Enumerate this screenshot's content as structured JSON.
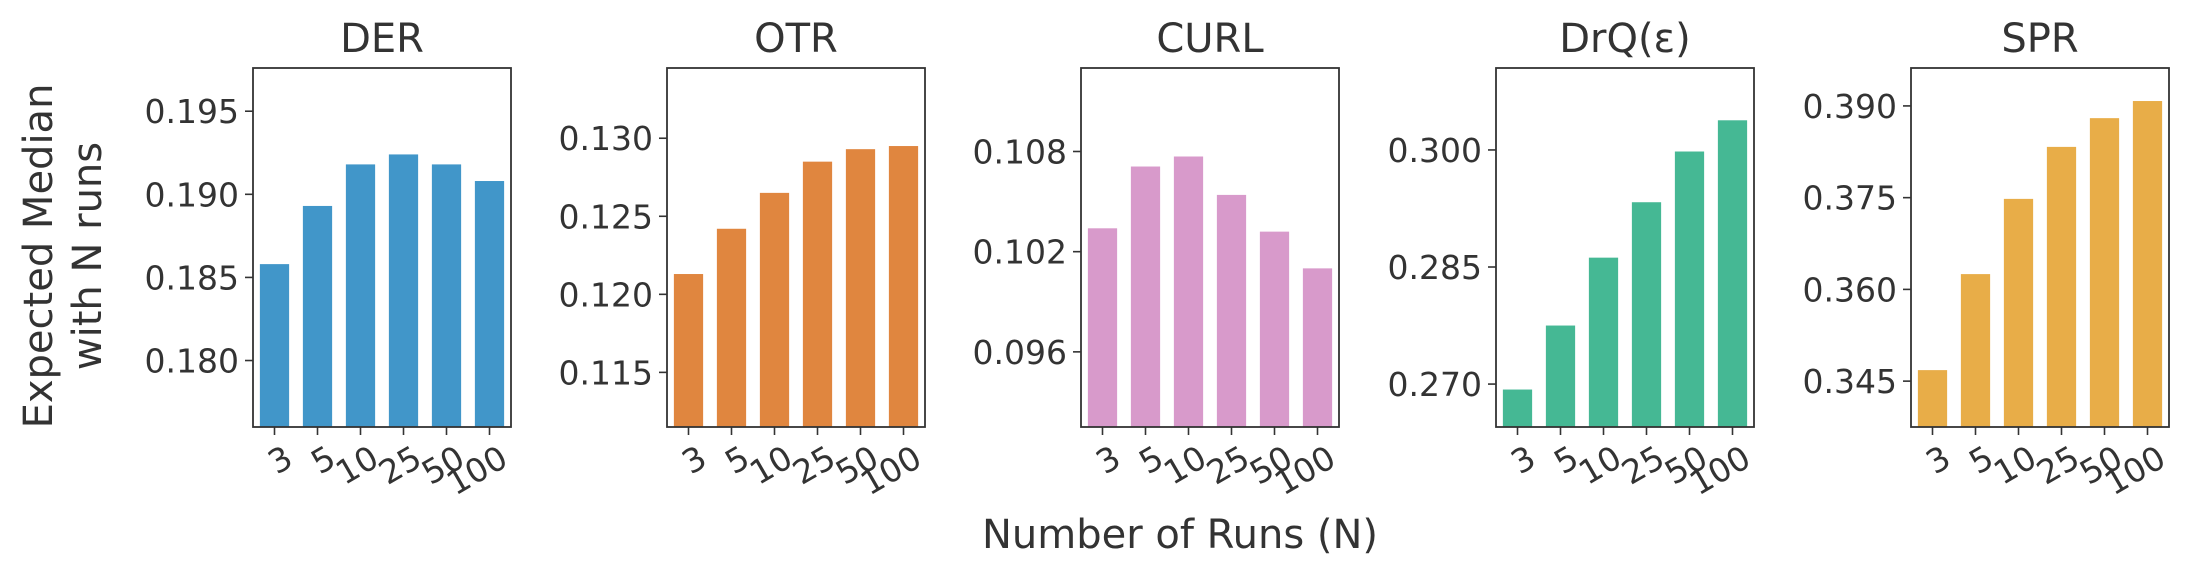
{
  "figure": {
    "ylabel_lines": [
      "Expected Median",
      "with N runs"
    ],
    "xlabel": "Number of Runs (N)"
  },
  "chart_data": [
    {
      "type": "bar",
      "title": "DER",
      "categories": [
        "3",
        "5",
        "10",
        "25",
        "50",
        "100"
      ],
      "values": [
        0.1858,
        0.1893,
        0.1918,
        0.1924,
        0.1918,
        0.1908
      ],
      "ylim": [
        0.176,
        0.1976
      ],
      "yticks": [
        0.18,
        0.185,
        0.19,
        0.195
      ],
      "ytick_labels": [
        "0.180",
        "0.185",
        "0.190",
        "0.195"
      ],
      "color": "#4196c9",
      "grid": false
    },
    {
      "type": "bar",
      "title": "OTR",
      "categories": [
        "3",
        "5",
        "10",
        "25",
        "50",
        "100"
      ],
      "values": [
        0.1213,
        0.1242,
        0.1265,
        0.1285,
        0.1293,
        0.1295
      ],
      "ylim": [
        0.1115,
        0.1345
      ],
      "yticks": [
        0.115,
        0.12,
        0.125,
        0.13
      ],
      "ytick_labels": [
        "0.115",
        "0.120",
        "0.125",
        "0.130"
      ],
      "color": "#e0863f",
      "grid": false
    },
    {
      "type": "bar",
      "title": "CURL",
      "categories": [
        "3",
        "5",
        "10",
        "25",
        "50",
        "100"
      ],
      "values": [
        0.1034,
        0.1071,
        0.1077,
        0.1054,
        0.1032,
        0.101
      ],
      "ylim": [
        0.0915,
        0.113
      ],
      "yticks": [
        0.096,
        0.102,
        0.108
      ],
      "ytick_labels": [
        "0.096",
        "0.102",
        "0.108"
      ],
      "color": "#d89acb",
      "grid": false
    },
    {
      "type": "bar",
      "title": "DrQ(ε)",
      "categories": [
        "3",
        "5",
        "10",
        "25",
        "50",
        "100"
      ],
      "values": [
        0.2693,
        0.2775,
        0.2862,
        0.2933,
        0.2998,
        0.3038
      ],
      "ylim": [
        0.2645,
        0.3105
      ],
      "yticks": [
        0.27,
        0.285,
        0.3
      ],
      "ytick_labels": [
        "0.270",
        "0.285",
        "0.300"
      ],
      "color": "#45b894",
      "grid": false
    },
    {
      "type": "bar",
      "title": "SPR",
      "categories": [
        "3",
        "5",
        "10",
        "25",
        "50",
        "100"
      ],
      "values": [
        0.3468,
        0.3625,
        0.3748,
        0.3833,
        0.388,
        0.3908
      ],
      "ylim": [
        0.3375,
        0.3962
      ],
      "yticks": [
        0.345,
        0.36,
        0.375,
        0.39
      ],
      "ytick_labels": [
        "0.345",
        "0.360",
        "0.375",
        "0.390"
      ],
      "color": "#e8ad48",
      "grid": false
    }
  ]
}
